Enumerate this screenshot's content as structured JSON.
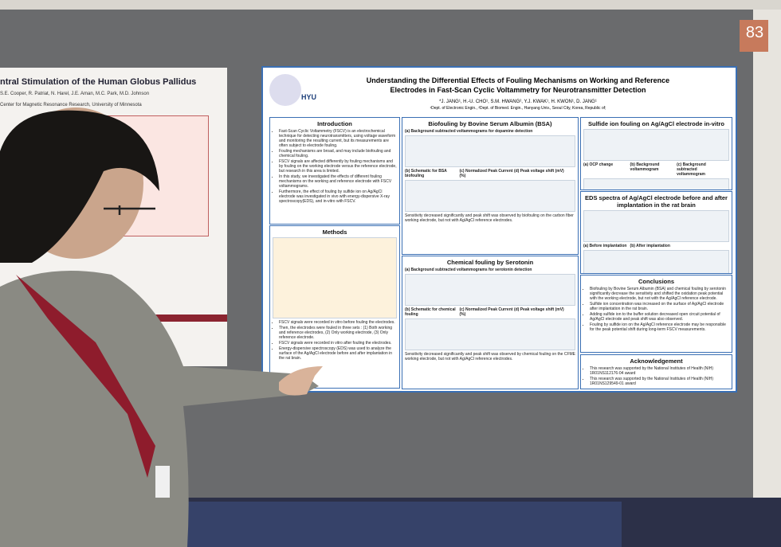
{
  "board_number": "83",
  "left_poster": {
    "title": "ntral Stimulation of the Human Globus Pallidus",
    "authors": "S.E. Cooper, R. Patriat, N. Harel, J.E. Aman, M.C. Park, M.D. Johnson",
    "affiliation": "Center for Magnetic Resonance Research, University of Minnesota",
    "section": "ences"
  },
  "poster": {
    "title": "Understanding the Differential Effects of Fouling Mechanisms on Working and Reference Electrodes in Fast-Scan Cyclic Voltammetry for Neurotransmitter Detection",
    "authors": "*J. JANG¹, H.-U. CHO¹, S.M. HWANG², Y.J. KWAK¹, H. KWON¹, D. JANG¹",
    "affiliation": "¹Dept. of Electronic Engin., ²Dept. of Biomed. Engin., Hanyang Univ., Seoul City, Korea, Republic of;",
    "logo": "HYU",
    "introduction": {
      "heading": "Introduction",
      "items": [
        "Fast-Scan Cyclic Voltammetry (FSCV) is an electrochemical technique for detecting neurotransmitters, using voltage waveform and monitoring the resulting current, but its measurements are often subject to electrode fouling.",
        "Fouling mechanisms are broad, and may include biofouling and chemical fouling.",
        "FSCV signals are affected differently by fouling mechanisms and by fouling on the working electrode versus the reference electrode, but research in this area is limited.",
        "In this study, we investigated the effects of different fouling mechanisms on the working and reference electrode with FSCV voltammograms.",
        "Furthermore, the effect of fouling by sulfide ion on Ag/AgCl electrode was investigated in vivo with energy-dispersive X-ray spectroscopy(EDS), and in-vitro with FSCV."
      ]
    },
    "methods": {
      "heading": "Methods",
      "items": [
        "FSCV signals were recorded in vitro before fouling the electrodes.",
        "Then, the electrodes were fouled in three sets : (1) Both working and reference electrodes, (2) Only working electrode, (3) Only reference electrode.",
        "FSCV signals were recorded in vitro after fouling the electrodes.",
        "Energy-dispersive spectroscopy (EDS) was used to analyze the surface of the Ag/AgCl electrode before and after implantation in the rat brain."
      ]
    },
    "bsa": {
      "heading": "Biofouling by Bovine Serum Albumin (BSA)",
      "sub": "(a)  Background subtracted voltammograms for dopamine detection",
      "labels": [
        "(b) Schematic for BSA biofouling",
        "(c) Normalized Peak Current (%)",
        "(d) Peak voltage shift (mV)"
      ],
      "note": "Sensitivity decreased significantly and peak shift was observed by biofouling on the carbon fiber working electrode, but not with Ag/AgCl reference electrodes."
    },
    "serotonin": {
      "heading": "Chemical fouling by Serotonin",
      "sub": "(a)  Background subtracted voltammograms for serotonin detection",
      "labels": [
        "(b) Schematic for chemical fouling",
        "(c) Normalized Peak Current (%)",
        "(d) Peak voltage shift (mV)"
      ],
      "note": "Sensitivity decreased significantly and peak shift was observed by chemical fouling on the CFME working electrode, but not with Ag/AgCl reference electrodes."
    },
    "sulfide": {
      "heading": "Sulfide ion fouling on Ag/AgCl electrode in-vitro",
      "labels": [
        "(a) OCP change",
        "(b) Background voltammogram",
        "(c) Background subtracted voltammogram"
      ],
      "note": "Fouling by sulfide ion on Ag/AgCl reference electrode caused shift on oxidation and reduction peak potential for FSCV dopamine signal."
    },
    "eds": {
      "heading": "EDS spectra of Ag/AgCl electrode before and after implantation in the rat brain",
      "labels": [
        "(a) Before implantation",
        "(b) After implantation"
      ],
      "note": "Sulfide ion concentration increases after implantation in the rat brain"
    },
    "conclusions": {
      "heading": "Conclusions",
      "items": [
        "Biofouling by Bovine Serum Albumin (BSA) and chemical fouling by serotonin significantly decrease the sensitivity and shifted the oxidation peak potential with the working electrode, but not with the Ag/AgCl reference electrode.",
        "Sulfide ion concentration was increased on the surface of Ag/AgCl electrode after implantation in the rat brain.",
        "Adding sulfide ion to the buffer solution decreased open circuit potential of Ag/AgCl electrode and peak shift was also observed.",
        "Fouling by sulfide ion on the Ag/AgCl reference electrode may be responsible for the peak potential shift during long-term FSCV measurements."
      ]
    },
    "acknowledgement": {
      "heading": "Acknowledgement",
      "items": [
        "This research was supported by the National Institutes of Health (NIH) 1R01NS112176-04 award",
        "This research was supported by the National Institutes of Health (NIH) 1R01NS129549-01 award"
      ]
    }
  }
}
